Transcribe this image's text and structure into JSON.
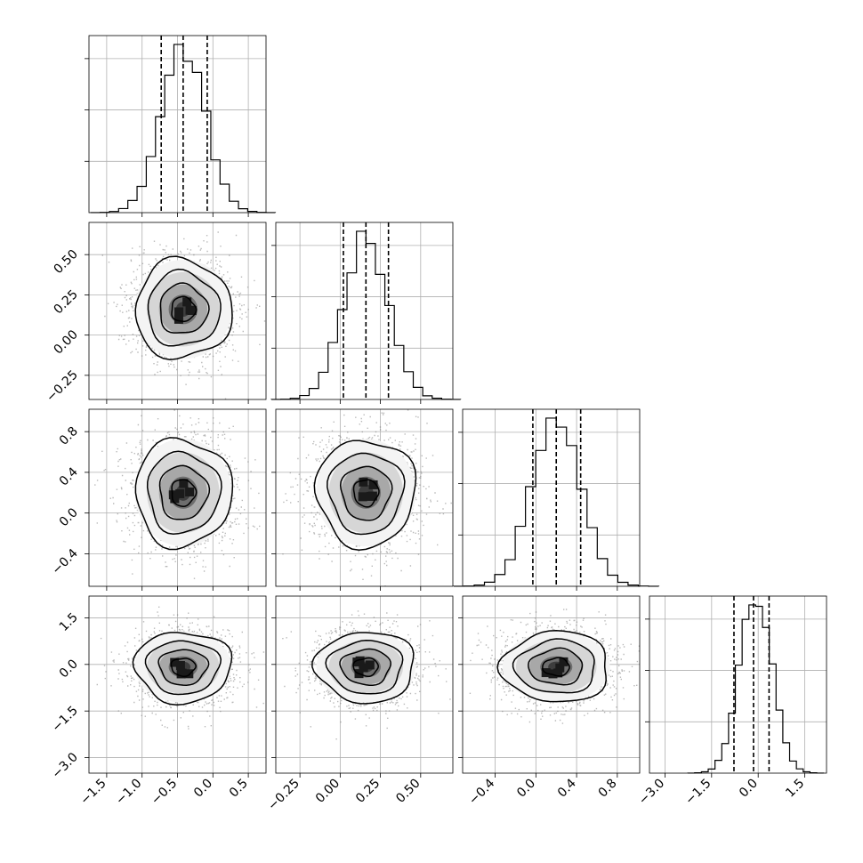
{
  "chart_data": {
    "type": "corner",
    "description_free": true,
    "grid": true,
    "colors": {
      "points": "#7f7f7f",
      "line": "#000000",
      "grid": "#b0b0b0"
    },
    "parameters": [
      {
        "index": 0,
        "range": [
          -1.75,
          0.75
        ],
        "ticks": [
          -1.5,
          -1.0,
          -0.5,
          0.0,
          0.5
        ],
        "tick_labels": [
          "−1.5",
          "−1.0",
          "−0.5",
          "0.0",
          "0.5"
        ],
        "mean": -0.42,
        "sd": 0.31,
        "quantiles": [
          -0.73,
          -0.42,
          -0.08
        ]
      },
      {
        "index": 1,
        "range": [
          -0.4,
          0.7
        ],
        "ticks": [
          -0.25,
          0.0,
          0.25,
          0.5
        ],
        "tick_labels": [
          "−0.25",
          "0.00",
          "0.25",
          "0.50"
        ],
        "mean": 0.16,
        "sd": 0.14,
        "quantiles": [
          0.02,
          0.16,
          0.3
        ]
      },
      {
        "index": 2,
        "range": [
          -0.72,
          1.02
        ],
        "ticks": [
          -0.4,
          0.0,
          0.4,
          0.8
        ],
        "tick_labels": [
          "−0.4",
          "0.0",
          "0.4",
          "0.8"
        ],
        "mean": 0.2,
        "sd": 0.24,
        "quantiles": [
          -0.03,
          0.2,
          0.44
        ]
      },
      {
        "index": 3,
        "range": [
          -3.5,
          2.2
        ],
        "ticks": [
          -3.0,
          -1.5,
          0.0,
          1.5
        ],
        "tick_labels": [
          "−3.0",
          "−1.5",
          "0.0",
          "1.5"
        ],
        "mean": -0.08,
        "sd": 0.52,
        "quantiles": [
          -0.78,
          -0.15,
          0.35
        ]
      }
    ],
    "correlations": {
      "1_0": 0.0,
      "2_0": 0.0,
      "2_1": 0.0,
      "3_0": 0.0,
      "3_1": 0.0,
      "3_2": 0.0
    },
    "histogram_bins": 20,
    "samples_shown_per_panel": 1800,
    "contour_levels_sigma": [
      0.5,
      1.0,
      1.5,
      2.0
    ]
  }
}
